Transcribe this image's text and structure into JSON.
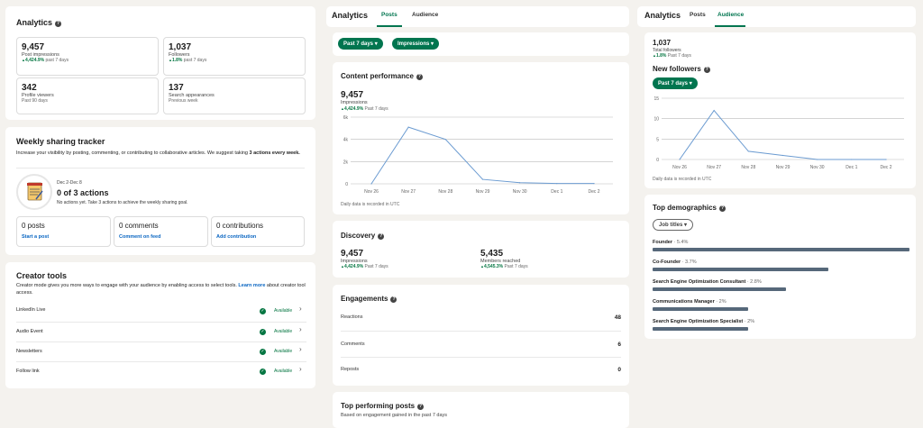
{
  "left": {
    "analytics": {
      "title": "Analytics",
      "stats": [
        {
          "value": "9,457",
          "label": "Post impressions",
          "change": "4,424.9%",
          "period": "past 7 days"
        },
        {
          "value": "1,037",
          "label": "Followers",
          "change": "1.8%",
          "period": "past 7 days"
        },
        {
          "value": "342",
          "label": "Profile viewers",
          "sub": "Past 90 days"
        },
        {
          "value": "137",
          "label": "Search appearances",
          "sub": "Previous week"
        }
      ]
    },
    "tracker": {
      "title": "Weekly sharing tracker",
      "desc_pre": "Increase your visibility by posting, commenting, or contributing to collaborative articles. We suggest taking ",
      "desc_bold": "3 actions every week.",
      "date_range": "Dec 2-Dec 8",
      "actions": "0 of 3 actions",
      "hint": "No actions yet. Take 3 actions to achieve the weekly sharing goal.",
      "boxes": [
        {
          "count": "0 posts",
          "link": "Start a post"
        },
        {
          "count": "0 comments",
          "link": "Comment on feed"
        },
        {
          "count": "0 contributions",
          "link": "Add contribution"
        }
      ]
    },
    "creator": {
      "title": "Creator tools",
      "desc": "Creator mode gives you more ways to engage with your audience by enabling access to select tools. ",
      "learn": "Learn more",
      "desc2": " about creator tool access.",
      "tools": [
        {
          "name": "LinkedIn Live",
          "status": "Available"
        },
        {
          "name": "Audio Event",
          "status": "Available"
        },
        {
          "name": "Newsletters",
          "status": "Available"
        },
        {
          "name": "Follow link",
          "status": "Available"
        }
      ]
    }
  },
  "middle": {
    "title": "Analytics",
    "tabs": [
      "Posts",
      "Audience"
    ],
    "filters": [
      "Past 7 days",
      "Impressions"
    ],
    "content": {
      "title": "Content performance",
      "value": "9,457",
      "label": "Impressions",
      "change": "4,424.9%",
      "period": "Past 7 days",
      "footnote": "Daily data is recorded in UTC"
    },
    "discovery": {
      "title": "Discovery",
      "items": [
        {
          "value": "9,457",
          "label": "Impressions",
          "change": "4,424.9%",
          "period": "Past 7 days"
        },
        {
          "value": "5,435",
          "label": "Members reached",
          "change": "4,545.3%",
          "period": "Past 7 days"
        }
      ]
    },
    "engagements": {
      "title": "Engagements",
      "rows": [
        {
          "label": "Reactions",
          "value": "48"
        },
        {
          "label": "Comments",
          "value": "6"
        },
        {
          "label": "Reposts",
          "value": "0"
        }
      ]
    },
    "top_posts": {
      "title": "Top performing posts",
      "desc": "Based on engagement gained in the past 7 days"
    }
  },
  "right": {
    "title": "Analytics",
    "tabs": [
      "Posts",
      "Audience"
    ],
    "followers": {
      "value": "1,037",
      "label": "Total followers",
      "change": "1.8%",
      "period": "Past 7 days",
      "title": "New followers",
      "filter": "Past 7 days",
      "footnote": "Daily data is recorded in UTC"
    },
    "demographics": {
      "title": "Top demographics",
      "filter": "Job titles",
      "rows": [
        {
          "name": "Founder",
          "pct": "5.4%",
          "value": 5.4
        },
        {
          "name": "Co-Founder",
          "pct": "3.7%",
          "value": 3.7
        },
        {
          "name": "Search Engine Optimization Consultant",
          "pct": "2.8%",
          "value": 2.8
        },
        {
          "name": "Communications Manager",
          "pct": "2%",
          "value": 2.0
        },
        {
          "name": "Search Engine Optimization Specialist",
          "pct": "2%",
          "value": 2.0
        }
      ]
    }
  },
  "chart_data": [
    {
      "type": "line",
      "categories": [
        "Nov 26",
        "Nov 27",
        "Nov 28",
        "Nov 29",
        "Nov 30",
        "Dec 1",
        "Dec 2"
      ],
      "values": [
        0,
        5100,
        4000,
        400,
        100,
        30,
        30
      ],
      "yticks": [
        "0",
        "2k",
        "4k",
        "6k"
      ],
      "ylim": [
        0,
        6000
      ],
      "color": "#6b9bd1",
      "grid": true
    },
    {
      "type": "line",
      "categories": [
        "Nov 26",
        "Nov 27",
        "Nov 28",
        "Nov 29",
        "Nov 30",
        "Dec 1",
        "Dec 2"
      ],
      "values": [
        0,
        12,
        2,
        1,
        0,
        0,
        0
      ],
      "yticks": [
        "0",
        "5",
        "10",
        "15"
      ],
      "ylim": [
        0,
        15
      ],
      "color": "#6b9bd1",
      "grid": true
    }
  ]
}
